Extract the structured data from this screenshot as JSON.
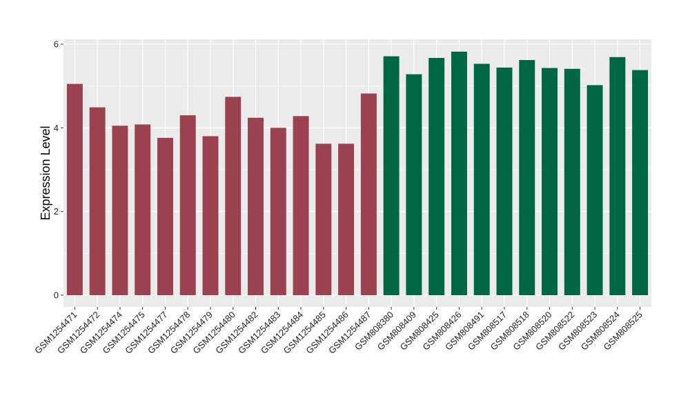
{
  "chart_data": {
    "type": "bar",
    "title": "",
    "xlabel": "",
    "ylabel": "Expression Level",
    "ylim": [
      0,
      6
    ],
    "yticks": [
      "0",
      "2",
      "4",
      "6"
    ],
    "grid": true,
    "legend": "none",
    "panel_background": "#EBEBEB",
    "categories": [
      "GSM1254471",
      "GSM1254472",
      "GSM1254474",
      "GSM1254475",
      "GSM1254477",
      "GSM1254478",
      "GSM1254479",
      "GSM1254480",
      "GSM1254482",
      "GSM1254483",
      "GSM1254484",
      "GSM1254485",
      "GSM1254486",
      "GSM1254487",
      "GSM808380",
      "GSM808409",
      "GSM808425",
      "GSM808426",
      "GSM808491",
      "GSM808517",
      "GSM808518",
      "GSM808520",
      "GSM808522",
      "GSM808523",
      "GSM808524",
      "GSM808525"
    ],
    "values": [
      5.05,
      4.49,
      4.05,
      4.08,
      3.76,
      4.3,
      3.8,
      4.74,
      4.24,
      4.0,
      4.28,
      3.62,
      3.62,
      4.82,
      5.71,
      5.28,
      5.67,
      5.82,
      5.53,
      5.44,
      5.62,
      5.43,
      5.41,
      5.02,
      5.69,
      5.38
    ],
    "colors": [
      "#9B4250",
      "#9B4250",
      "#9B4250",
      "#9B4250",
      "#9B4250",
      "#9B4250",
      "#9B4250",
      "#9B4250",
      "#9B4250",
      "#9B4250",
      "#9B4250",
      "#9B4250",
      "#9B4250",
      "#9B4250",
      "#006745",
      "#006745",
      "#006745",
      "#006745",
      "#006745",
      "#006745",
      "#006745",
      "#006745",
      "#006745",
      "#006745",
      "#006745",
      "#006745"
    ]
  }
}
